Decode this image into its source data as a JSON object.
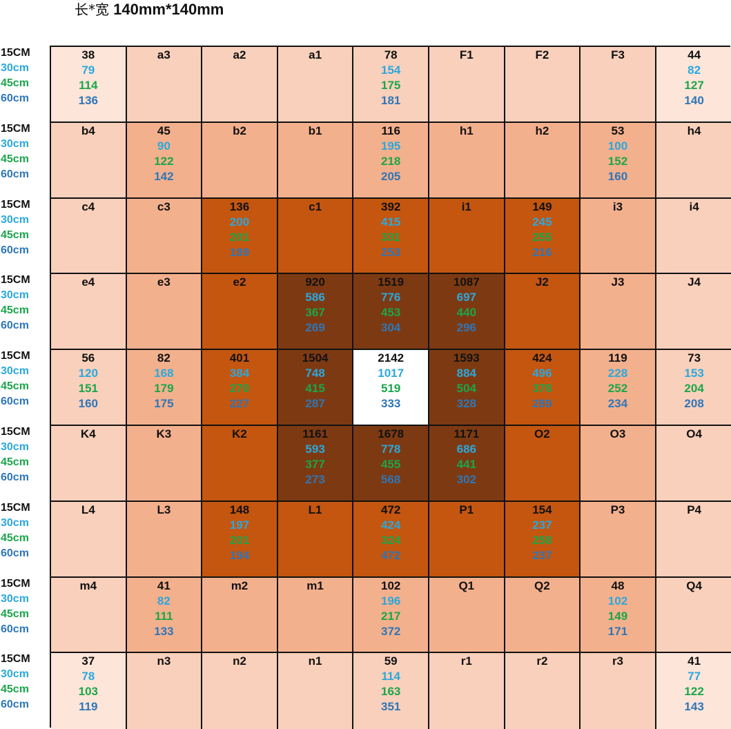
{
  "title": {
    "prefix": "长*宽",
    "dimension": "140mm*140mm"
  },
  "chart_data": {
    "type": "heatmap",
    "title": "长*宽 140mm*140mm",
    "row_labels": [
      "15CM",
      "30cm",
      "45cm",
      "60cm"
    ],
    "row_label_colors": [
      "#111111",
      "#2aa8de",
      "#1aa64a",
      "#2e76b8"
    ],
    "grid": [
      [
        [
          "38",
          "79",
          "114",
          "136"
        ],
        [
          "a3"
        ],
        [
          "a2"
        ],
        [
          "a1"
        ],
        [
          "78",
          "154",
          "175",
          "181"
        ],
        [
          "F1"
        ],
        [
          "F2"
        ],
        [
          "F3"
        ],
        [
          "44",
          "82",
          "127",
          "140"
        ]
      ],
      [
        [
          "b4"
        ],
        [
          "45",
          "90",
          "122",
          "142"
        ],
        [
          "b2"
        ],
        [
          "b1"
        ],
        [
          "116",
          "195",
          "218",
          "205"
        ],
        [
          "h1"
        ],
        [
          "h2"
        ],
        [
          "53",
          "100",
          "152",
          "160"
        ],
        [
          "h4"
        ]
      ],
      [
        [
          "c4"
        ],
        [
          "c3"
        ],
        [
          "136",
          "200",
          "201",
          "189"
        ],
        [
          "c1"
        ],
        [
          "392",
          "415",
          "331",
          "253"
        ],
        [
          "i1"
        ],
        [
          "149",
          "245",
          "255",
          "216"
        ],
        [
          "i3"
        ],
        [
          "i4"
        ]
      ],
      [
        [
          "e4"
        ],
        [
          "e3"
        ],
        [
          "e2"
        ],
        [
          "920",
          "586",
          "367",
          "269"
        ],
        [
          "1519",
          "776",
          "453",
          "304"
        ],
        [
          "1087",
          "697",
          "440",
          "296"
        ],
        [
          "J2"
        ],
        [
          "J3"
        ],
        [
          "J4"
        ]
      ],
      [
        [
          "56",
          "120",
          "151",
          "160"
        ],
        [
          "82",
          "168",
          "179",
          "175"
        ],
        [
          "401",
          "384",
          "270",
          "227"
        ],
        [
          "1504",
          "748",
          "415",
          "287"
        ],
        [
          "2142",
          "1017",
          "519",
          "333"
        ],
        [
          "1593",
          "884",
          "504",
          "328"
        ],
        [
          "424",
          "496",
          "378",
          "289"
        ],
        [
          "119",
          "228",
          "252",
          "234"
        ],
        [
          "73",
          "153",
          "204",
          "208"
        ]
      ],
      [
        [
          "K4"
        ],
        [
          "K3"
        ],
        [
          "K2"
        ],
        [
          "1161",
          "593",
          "377",
          "273"
        ],
        [
          "1678",
          "778",
          "455",
          "568"
        ],
        [
          "1171",
          "686",
          "441",
          "302"
        ],
        [
          "O2"
        ],
        [
          "O3"
        ],
        [
          "O4"
        ]
      ],
      [
        [
          "L4"
        ],
        [
          "L3"
        ],
        [
          "148",
          "197",
          "201",
          "194"
        ],
        [
          "L1"
        ],
        [
          "472",
          "424",
          "324",
          "472"
        ],
        [
          "P1"
        ],
        [
          "154",
          "237",
          "258",
          "237"
        ],
        [
          "P3"
        ],
        [
          "P4"
        ]
      ],
      [
        [
          "m4"
        ],
        [
          "41",
          "82",
          "111",
          "133"
        ],
        [
          "m2"
        ],
        [
          "m1"
        ],
        [
          "102",
          "196",
          "217",
          "372"
        ],
        [
          "Q1"
        ],
        [
          "Q2"
        ],
        [
          "48",
          "102",
          "149",
          "171"
        ],
        [
          "Q4"
        ]
      ],
      [
        [
          "37",
          "78",
          "103",
          "119"
        ],
        [
          "n3"
        ],
        [
          "n2"
        ],
        [
          "n1"
        ],
        [
          "59",
          "114",
          "163",
          "351"
        ],
        [
          "r1"
        ],
        [
          "r2"
        ],
        [
          "r3"
        ],
        [
          "41",
          "77",
          "122",
          "143"
        ]
      ]
    ],
    "cell_shading": [
      [
        0,
        1,
        1,
        1,
        1,
        1,
        1,
        1,
        0
      ],
      [
        1,
        2,
        2,
        2,
        2,
        2,
        2,
        2,
        1
      ],
      [
        1,
        2,
        3,
        3,
        3,
        3,
        3,
        2,
        1
      ],
      [
        1,
        2,
        3,
        4,
        4,
        4,
        3,
        2,
        1
      ],
      [
        1,
        2,
        3,
        4,
        5,
        4,
        3,
        2,
        1
      ],
      [
        1,
        2,
        3,
        4,
        4,
        4,
        3,
        2,
        1
      ],
      [
        1,
        2,
        3,
        3,
        3,
        3,
        3,
        2,
        1
      ],
      [
        1,
        2,
        2,
        2,
        2,
        2,
        2,
        2,
        1
      ],
      [
        0,
        1,
        1,
        1,
        1,
        1,
        1,
        1,
        0
      ]
    ],
    "shade_colors": [
      "#fde5d9",
      "#f9d0bb",
      "#f3b08d",
      "#c4560f",
      "#7d3a12"
    ]
  }
}
